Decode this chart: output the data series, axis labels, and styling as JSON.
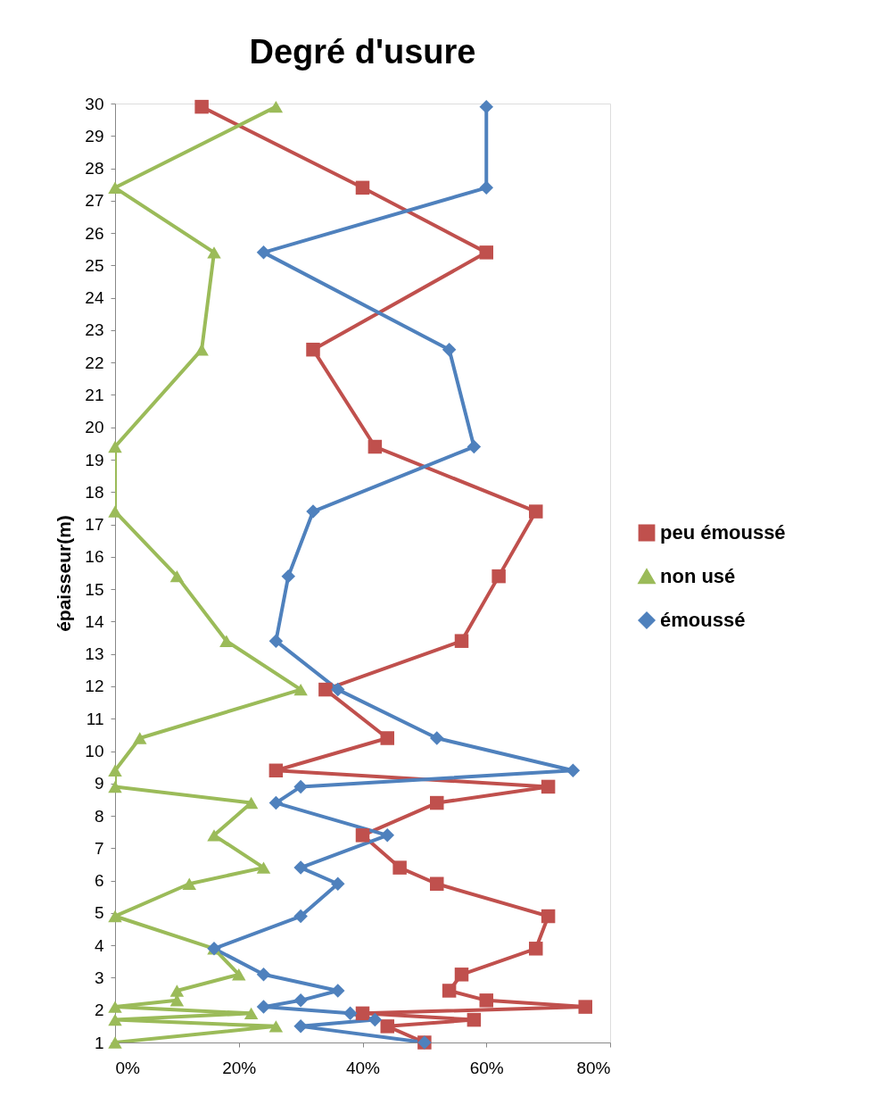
{
  "chart_data": {
    "type": "line",
    "title": "Degré d'usure",
    "ylabel": "épaisseur(m)",
    "xlim": [
      0,
      80
    ],
    "xticks": [
      {
        "value": 0,
        "label": "0%"
      },
      {
        "value": 20,
        "label": "20%"
      },
      {
        "value": 40,
        "label": "40%"
      },
      {
        "value": 60,
        "label": "60%"
      },
      {
        "value": 80,
        "label": "80%"
      }
    ],
    "ylim": [
      1,
      30
    ],
    "yticks": [
      1,
      2,
      3,
      4,
      5,
      6,
      7,
      8,
      9,
      10,
      11,
      12,
      13,
      14,
      15,
      16,
      17,
      18,
      19,
      20,
      21,
      22,
      23,
      24,
      25,
      26,
      27,
      28,
      29,
      30
    ],
    "grid": false,
    "legend": "right",
    "series": [
      {
        "name": "peu émoussé",
        "color": "#c0504d",
        "marker": "square",
        "x": [
          14,
          40,
          60,
          32,
          42,
          68,
          62,
          56,
          34,
          44,
          26,
          70,
          52,
          40,
          46,
          52,
          70,
          68,
          56,
          54,
          60,
          76,
          40,
          58,
          44,
          50
        ],
        "values": [
          29.9,
          27.4,
          25.4,
          22.4,
          19.4,
          17.4,
          15.4,
          13.4,
          11.9,
          10.4,
          9.4,
          8.9,
          8.4,
          7.4,
          6.4,
          5.9,
          4.9,
          3.9,
          3.1,
          2.6,
          2.3,
          2.1,
          1.9,
          1.7,
          1.5,
          1.0
        ]
      },
      {
        "name": "non usé",
        "color": "#9bbb59",
        "marker": "triangle",
        "x": [
          26,
          0,
          16,
          14,
          0,
          0,
          10,
          18,
          30,
          4,
          0,
          0,
          22,
          16,
          24,
          12,
          0,
          16,
          20,
          10,
          10,
          0,
          22,
          0,
          26,
          0
        ],
        "values": [
          29.9,
          27.4,
          25.4,
          22.4,
          19.4,
          17.4,
          15.4,
          13.4,
          11.9,
          10.4,
          9.4,
          8.9,
          8.4,
          7.4,
          6.4,
          5.9,
          4.9,
          3.9,
          3.1,
          2.6,
          2.3,
          2.1,
          1.9,
          1.7,
          1.5,
          1.0
        ]
      },
      {
        "name": "émoussé",
        "color": "#4f81bd",
        "marker": "diamond",
        "x": [
          60,
          60,
          24,
          54,
          58,
          32,
          28,
          26,
          36,
          52,
          74,
          30,
          26,
          44,
          30,
          36,
          30,
          16,
          24,
          36,
          30,
          24,
          38,
          42,
          30,
          50
        ],
        "values": [
          29.9,
          27.4,
          25.4,
          22.4,
          19.4,
          17.4,
          15.4,
          13.4,
          11.9,
          10.4,
          9.4,
          8.9,
          8.4,
          7.4,
          6.4,
          5.9,
          4.9,
          3.9,
          3.1,
          2.6,
          2.3,
          2.1,
          1.9,
          1.7,
          1.5,
          1.0
        ]
      }
    ]
  }
}
